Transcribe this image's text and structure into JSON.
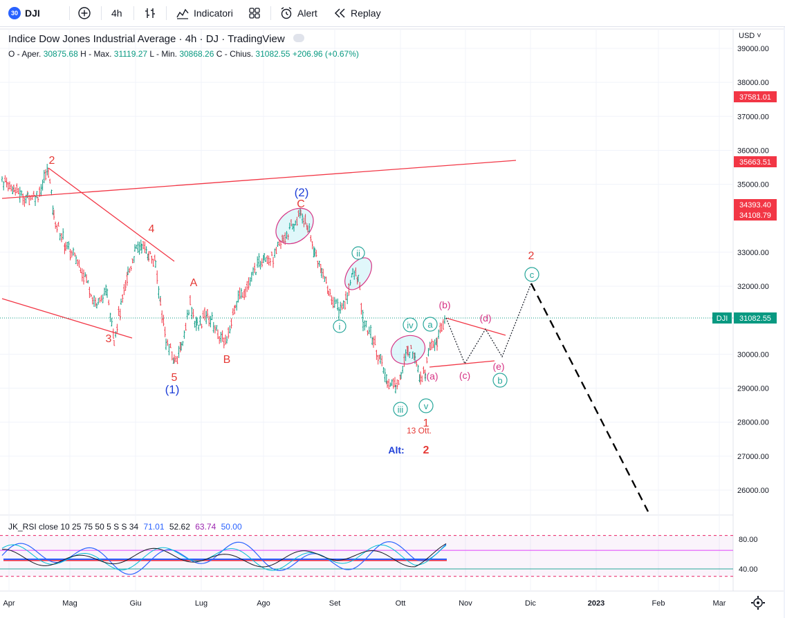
{
  "toolbar": {
    "symbol_badge": "30",
    "symbol": "DJI",
    "add_icon": "plus-circle-icon",
    "interval": "4h",
    "chart_type_icon": "bar-chart-icon",
    "indicators_label": "Indicatori",
    "templates_icon": "grid-icon",
    "alert_label": "Alert",
    "replay_label": "Replay"
  },
  "legend": {
    "title": "Indice Dow Jones Industrial Average · 4h · DJ · TradingView",
    "open_label": "O - Aper.",
    "open": "30875.68",
    "high_label": "H - Max.",
    "high": "31119.27",
    "low_label": "L - Min.",
    "low": "30868.26",
    "close_label": "C - Chius.",
    "close": "31082.55",
    "change": "+206.96 (+0.67%)"
  },
  "price_axis": {
    "currency": "USD",
    "ticks": [
      "39000.00",
      "38000.00",
      "37000.00",
      "36000.00",
      "35000.00",
      "33000.00",
      "32000.00",
      "30000.00",
      "29000.00",
      "28000.00",
      "27000.00",
      "26000.00"
    ],
    "tags": [
      {
        "text": "37581.01",
        "color": "#f23645"
      },
      {
        "text": "35663.51",
        "color": "#f23645"
      },
      {
        "text": "34393.40",
        "color": "#f23645"
      },
      {
        "text": "34108.79",
        "color": "#f23645"
      },
      {
        "text": "31082.55",
        "color": "#089981"
      }
    ],
    "symbol_tag": "DJI"
  },
  "time_axis": [
    "Apr",
    "Mag",
    "Giu",
    "Lug",
    "Ago",
    "Set",
    "Ott",
    "Nov",
    "Dic",
    "2023",
    "Feb",
    "Mar"
  ],
  "annotations": {
    "red": [
      "2",
      "4",
      "3",
      "A",
      "5",
      "B",
      "C",
      "1",
      "2"
    ],
    "blue": [
      "(2)",
      "(1)"
    ],
    "circled_green": [
      "ii",
      "i",
      "iv",
      "a",
      "iii",
      "v",
      "c",
      "b"
    ],
    "pink": [
      "(b)",
      "(d)",
      "(a)",
      "(c)",
      "(e)"
    ],
    "date_note": "13 Ott.",
    "alt_label": "Alt:",
    "alt_value": "2"
  },
  "rsi": {
    "name": "JK_RSI",
    "params": "close 10 25 75 50 5 S S 34",
    "v1": "71.01",
    "v2": "52.62",
    "v3": "63.74",
    "v4": "50.00",
    "ticks": [
      "80.00",
      "40.00"
    ]
  },
  "colors": {
    "up": "#089981",
    "down": "#f23645",
    "wave_red": "#e53935",
    "wave_blue": "#1e3fd8",
    "circle_green": "#26a69a",
    "pink": "#d63384"
  },
  "settings_icon": "gear-icon"
}
